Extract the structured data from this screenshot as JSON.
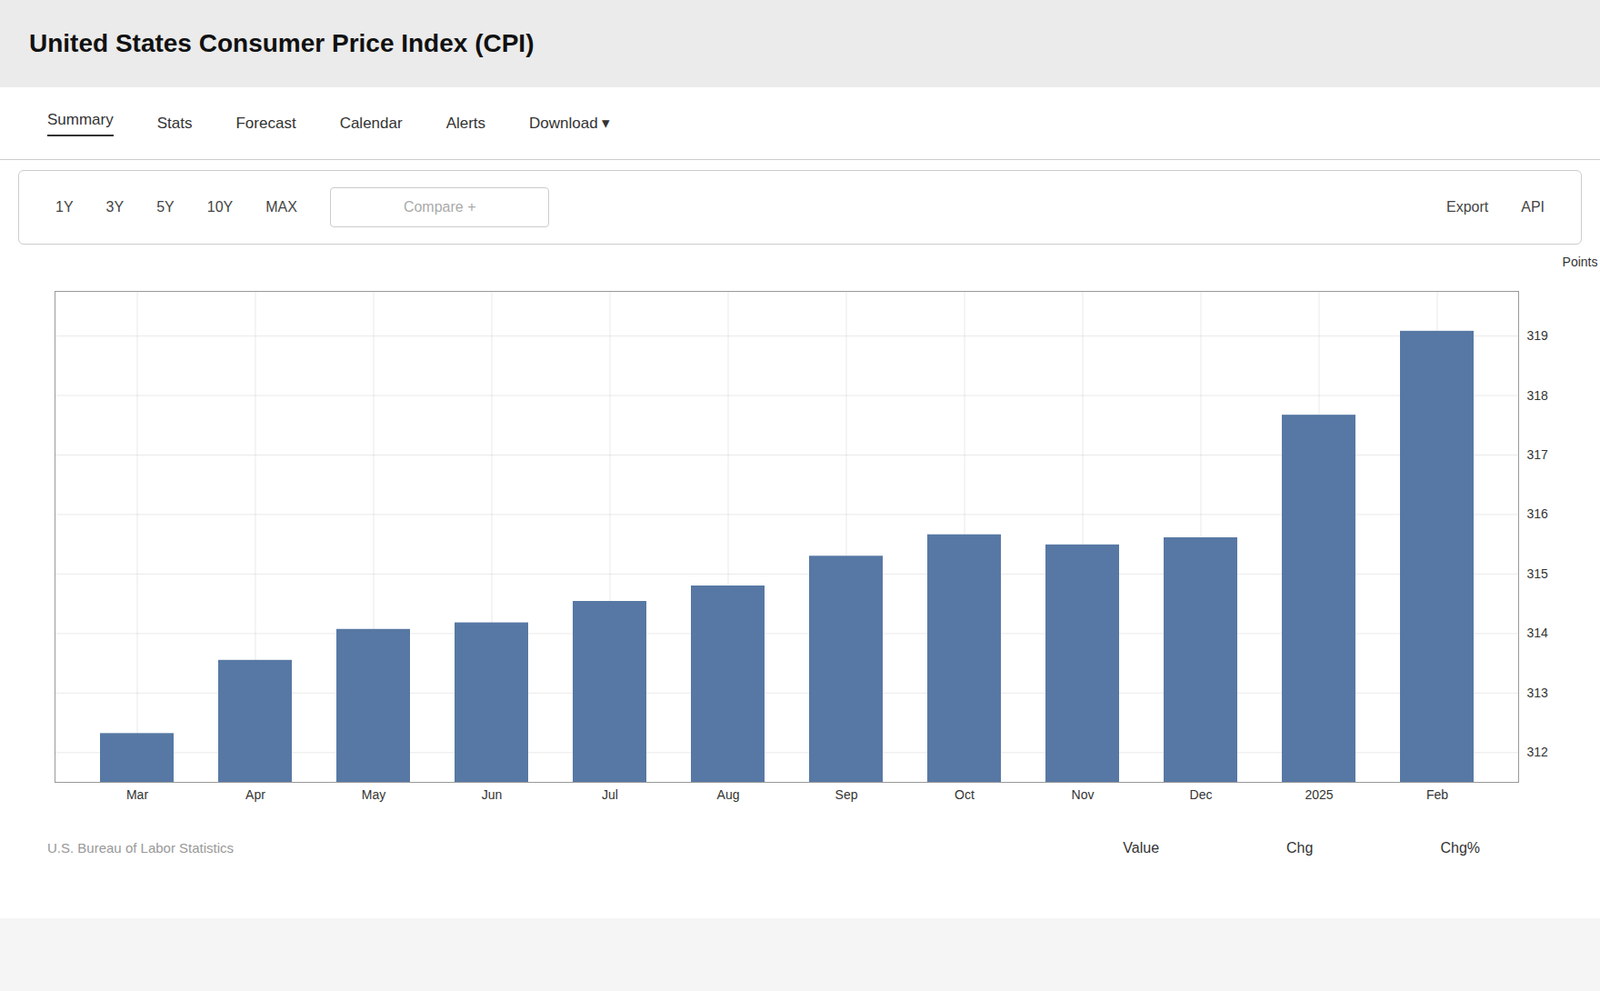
{
  "chart_data": {
    "type": "bar",
    "title": "United States Consumer Price Index (CPI)",
    "categories": [
      "Mar",
      "Apr",
      "May",
      "Jun",
      "Jul",
      "Aug",
      "Sep",
      "Oct",
      "Nov",
      "Dec",
      "2025",
      "Feb"
    ],
    "values": [
      312.32,
      313.55,
      314.07,
      314.18,
      314.54,
      314.8,
      315.3,
      315.66,
      315.49,
      315.61,
      317.67,
      319.08
    ],
    "color": "#5778a4",
    "ylim": [
      311.5,
      319.75
    ],
    "yticks": [
      312,
      313,
      314,
      315,
      316,
      317,
      318,
      319
    ],
    "ylabel": "Points",
    "grid": true,
    "annotations": [
      [
        "Summary",
        "Stats",
        "Forecast",
        "Calendar",
        "Alerts",
        "Download ▾"
      ],
      [
        "1Y",
        "3Y",
        "5Y",
        "10Y",
        "MAX"
      ],
      [
        "Compare +",
        "Export",
        "API"
      ],
      [
        "U.S. Bureau of Labor Statistics"
      ],
      [
        "Value",
        "Chg",
        "Chg%"
      ]
    ]
  }
}
